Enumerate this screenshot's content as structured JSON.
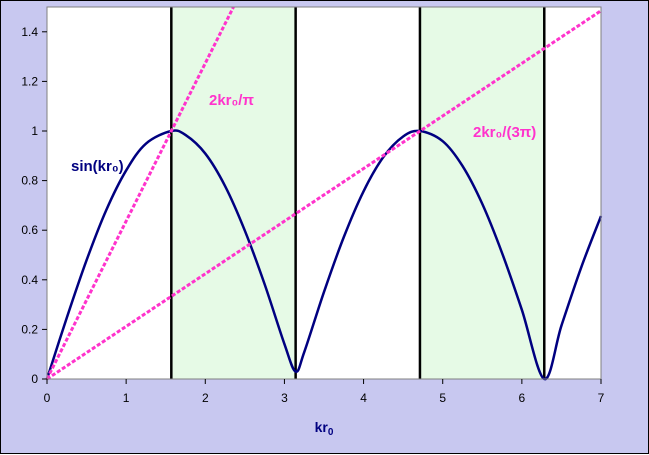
{
  "chart_data": {
    "type": "line",
    "xlabel": "kr",
    "xlabel_sub": "0",
    "xlim": [
      0,
      7
    ],
    "ylim": [
      0,
      1.5
    ],
    "xticks": [
      "0",
      "1",
      "2",
      "3",
      "4",
      "5",
      "6",
      "7"
    ],
    "yticks": [
      "0",
      "0.2",
      "0.4",
      "0.6",
      "0.8",
      "1",
      "1.2",
      "1.4"
    ],
    "grid": false,
    "colors": {
      "plot_background": "#ffffff",
      "chart_background": "#c8c8f0",
      "shaded_band": "#e6fae6",
      "curve": "#000080",
      "dashed": "#ff33cc",
      "vertical_lines": "#000000"
    },
    "shaded_bands": [
      [
        1.5708,
        3.1416
      ],
      [
        4.7124,
        6.2832
      ]
    ],
    "vertical_lines": [
      1.5708,
      3.1416,
      4.7124,
      6.2832
    ],
    "series": [
      {
        "name": "sin(kr₀)",
        "style": "solid",
        "x": [
          0,
          0.25,
          0.5,
          0.75,
          1.0,
          1.25,
          1.5708,
          1.75,
          2.0,
          2.25,
          2.5,
          2.75,
          3.0,
          3.1416,
          3.25,
          3.5,
          3.75,
          4.0,
          4.25,
          4.5,
          4.7124,
          5.0,
          5.25,
          5.5,
          5.75,
          6.0,
          6.2832,
          6.5,
          6.75,
          7.0
        ],
        "y": [
          0,
          0.247,
          0.479,
          0.682,
          0.841,
          0.949,
          1.0,
          0.984,
          0.909,
          0.778,
          0.598,
          0.382,
          0.141,
          0.03,
          0.108,
          0.351,
          0.572,
          0.757,
          0.895,
          0.978,
          1.0,
          0.959,
          0.859,
          0.706,
          0.508,
          0.279,
          0.0,
          0.215,
          0.45,
          0.657
        ]
      },
      {
        "name": "2kr₀/π",
        "style": "dashed",
        "x": [
          0,
          2.356
        ],
        "y": [
          0,
          1.5
        ]
      },
      {
        "name": "2kr₀/(3π)",
        "style": "dashed",
        "x": [
          0,
          7.0
        ],
        "y": [
          0,
          1.485
        ]
      }
    ],
    "annotations": [
      {
        "text": "sin(kr₀)",
        "series": 0
      },
      {
        "text": "2kr₀/π",
        "series": 1
      },
      {
        "text": "2kr₀/(3π)",
        "series": 2
      }
    ]
  }
}
